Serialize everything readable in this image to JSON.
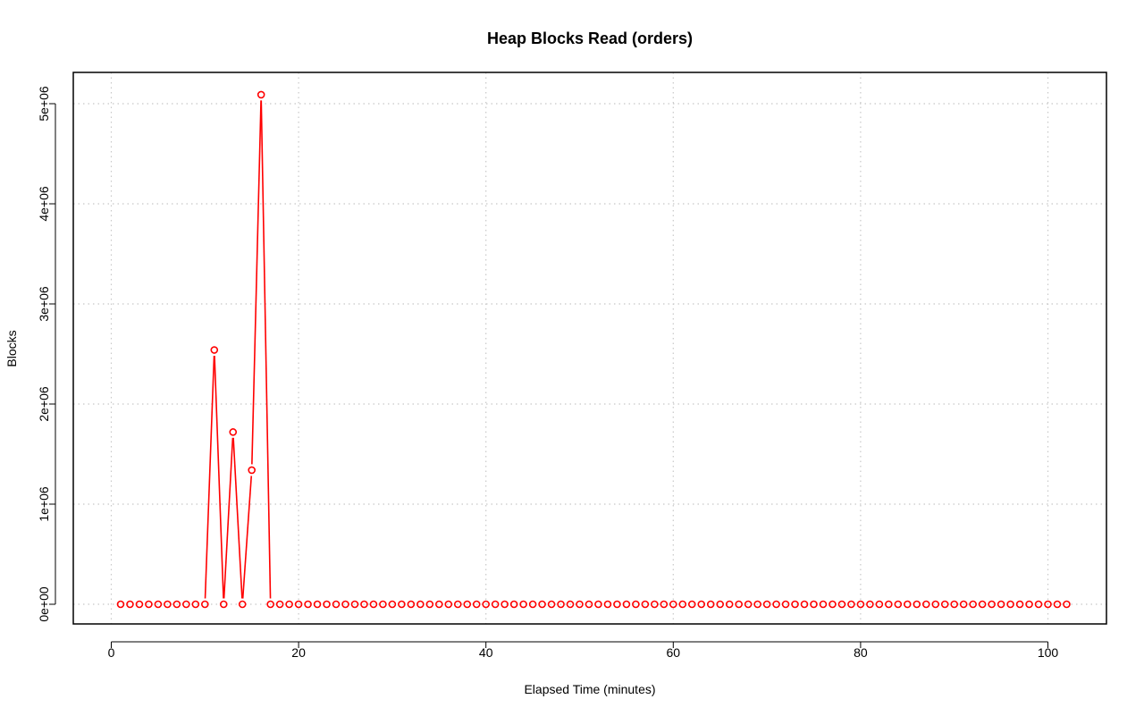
{
  "chart_data": {
    "type": "line",
    "title": "Heap Blocks Read (orders)",
    "xlabel": "Elapsed Time (minutes)",
    "ylabel": "Blocks",
    "xlim": [
      0,
      105
    ],
    "ylim": [
      -200000,
      5300000
    ],
    "x_ticks": [
      0,
      20,
      40,
      60,
      80,
      100
    ],
    "x_tick_labels": [
      "0",
      "20",
      "40",
      "60",
      "80",
      "100"
    ],
    "y_ticks": [
      0,
      1000000,
      2000000,
      3000000,
      4000000,
      5000000
    ],
    "y_tick_labels": [
      "0e+00",
      "1e+06",
      "2e+06",
      "3e+06",
      "4e+06",
      "5e+06"
    ],
    "grid": true,
    "series_color": "#ff0000",
    "series": [
      {
        "x_start": 1,
        "x_end": 102,
        "values": [
          0,
          0,
          0,
          0,
          0,
          0,
          0,
          0,
          0,
          0,
          2540000,
          0,
          1720000,
          0,
          1340000,
          5090000,
          0,
          0,
          0,
          0,
          0,
          0,
          0,
          0,
          0,
          0,
          0,
          0,
          0,
          0,
          0,
          0,
          0,
          0,
          0,
          0,
          0,
          0,
          0,
          0,
          0,
          0,
          0,
          0,
          0,
          0,
          0,
          0,
          0,
          0,
          0,
          0,
          0,
          0,
          0,
          0,
          0,
          0,
          0,
          0,
          0,
          0,
          0,
          0,
          0,
          0,
          0,
          0,
          0,
          0,
          0,
          0,
          0,
          0,
          0,
          0,
          0,
          0,
          0,
          0,
          0,
          0,
          0,
          0,
          0,
          0,
          0,
          0,
          0,
          0,
          0,
          0,
          0,
          0,
          0,
          0,
          0,
          0,
          0,
          0,
          0,
          0
        ]
      }
    ]
  }
}
